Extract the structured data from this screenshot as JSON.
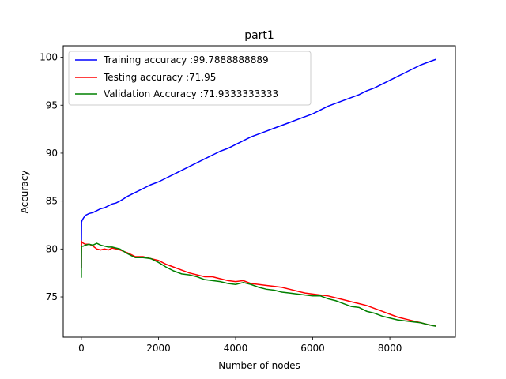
{
  "chart_data": {
    "type": "line",
    "title": "part1",
    "xlabel": "Number of nodes",
    "ylabel": "Accuracy",
    "xlim": [
      -470,
      9700
    ],
    "ylim": [
      70.8,
      101.2
    ],
    "xticks": [
      0,
      2000,
      4000,
      6000,
      8000
    ],
    "yticks": [
      75,
      80,
      85,
      90,
      95,
      100
    ],
    "grid": false,
    "legend_position": "top-left",
    "series": [
      {
        "name": "Training accuracy :99.7888888889",
        "color": "#0000ff",
        "x": [
          0,
          1,
          5,
          20,
          50,
          100,
          200,
          300,
          400,
          500,
          600,
          700,
          800,
          900,
          1000,
          1200,
          1400,
          1600,
          1800,
          2000,
          2200,
          2400,
          2600,
          2800,
          3000,
          3200,
          3400,
          3600,
          3800,
          4000,
          4200,
          4400,
          4600,
          4800,
          5000,
          5200,
          5400,
          5600,
          5800,
          6000,
          6200,
          6400,
          6600,
          6800,
          7000,
          7200,
          7400,
          7600,
          7800,
          8000,
          8200,
          8400,
          8600,
          8800,
          9000,
          9200
        ],
        "y": [
          78.0,
          80.5,
          82.8,
          83.0,
          83.2,
          83.5,
          83.7,
          83.8,
          84.0,
          84.2,
          84.3,
          84.5,
          84.7,
          84.8,
          85.0,
          85.5,
          85.9,
          86.3,
          86.7,
          87.0,
          87.4,
          87.8,
          88.2,
          88.6,
          89.0,
          89.4,
          89.8,
          90.2,
          90.5,
          90.9,
          91.3,
          91.7,
          92.0,
          92.3,
          92.6,
          92.9,
          93.2,
          93.5,
          93.8,
          94.1,
          94.5,
          94.9,
          95.2,
          95.5,
          95.8,
          96.1,
          96.5,
          96.8,
          97.2,
          97.6,
          98.0,
          98.4,
          98.8,
          99.2,
          99.5,
          99.79
        ]
      },
      {
        "name": "Testing accuracy :71.95",
        "color": "#ff0000",
        "x": [
          0,
          1,
          5,
          20,
          50,
          100,
          200,
          300,
          400,
          500,
          600,
          700,
          800,
          900,
          1000,
          1200,
          1400,
          1600,
          1800,
          2000,
          2200,
          2400,
          2600,
          2800,
          3000,
          3200,
          3400,
          3600,
          3800,
          4000,
          4200,
          4400,
          4600,
          4800,
          5000,
          5200,
          5400,
          5600,
          5800,
          6000,
          6200,
          6400,
          6600,
          6800,
          7000,
          7200,
          7400,
          7600,
          7800,
          8000,
          8200,
          8400,
          8600,
          8800,
          9000,
          9200
        ],
        "y": [
          78.0,
          79.5,
          80.8,
          80.7,
          80.6,
          80.5,
          80.5,
          80.3,
          80.0,
          79.9,
          80.0,
          79.9,
          80.1,
          80.0,
          79.9,
          79.6,
          79.2,
          79.2,
          79.0,
          78.8,
          78.4,
          78.1,
          77.8,
          77.5,
          77.3,
          77.1,
          77.1,
          76.9,
          76.7,
          76.6,
          76.7,
          76.4,
          76.3,
          76.2,
          76.1,
          76.0,
          75.8,
          75.6,
          75.4,
          75.3,
          75.2,
          75.1,
          74.9,
          74.7,
          74.5,
          74.3,
          74.1,
          73.8,
          73.5,
          73.2,
          72.9,
          72.7,
          72.5,
          72.3,
          72.1,
          71.95
        ]
      },
      {
        "name": "Validation Accuracy :71.9333333333",
        "color": "#008000",
        "x": [
          0,
          1,
          5,
          20,
          50,
          100,
          200,
          300,
          400,
          500,
          600,
          700,
          800,
          900,
          1000,
          1200,
          1400,
          1600,
          1800,
          2000,
          2200,
          2400,
          2600,
          2800,
          3000,
          3200,
          3400,
          3600,
          3800,
          4000,
          4200,
          4400,
          4600,
          4800,
          5000,
          5200,
          5400,
          5600,
          5800,
          6000,
          6200,
          6400,
          6600,
          6800,
          7000,
          7200,
          7400,
          7600,
          7800,
          8000,
          8200,
          8400,
          8600,
          8800,
          9000,
          9200
        ],
        "y": [
          77.0,
          79.0,
          80.2,
          80.3,
          80.3,
          80.4,
          80.5,
          80.4,
          80.6,
          80.4,
          80.3,
          80.2,
          80.2,
          80.1,
          80.0,
          79.5,
          79.1,
          79.1,
          79.0,
          78.6,
          78.1,
          77.7,
          77.4,
          77.3,
          77.1,
          76.8,
          76.7,
          76.6,
          76.4,
          76.3,
          76.5,
          76.3,
          76.0,
          75.8,
          75.7,
          75.5,
          75.4,
          75.3,
          75.2,
          75.1,
          75.1,
          74.8,
          74.6,
          74.3,
          74.0,
          73.9,
          73.5,
          73.3,
          73.0,
          72.8,
          72.6,
          72.5,
          72.4,
          72.3,
          72.1,
          71.93
        ]
      }
    ]
  }
}
